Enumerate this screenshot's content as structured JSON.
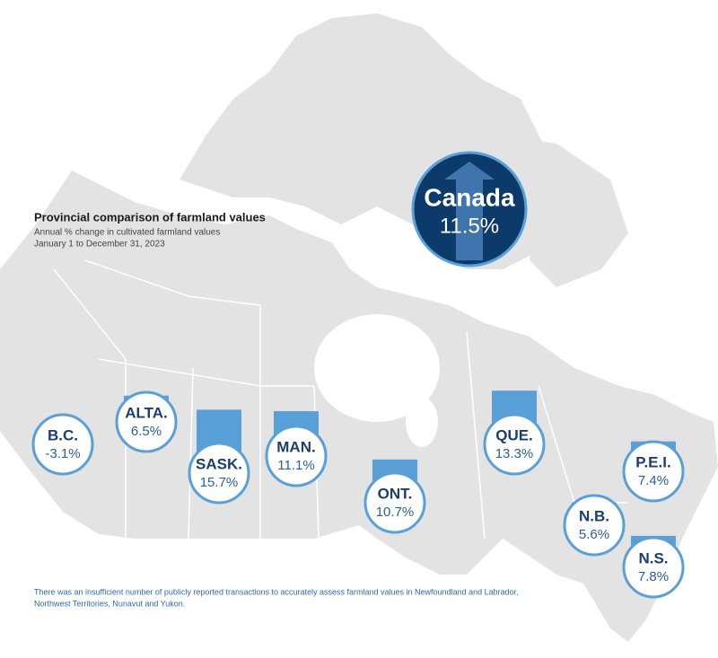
{
  "header": {
    "title": "Provincial comparison of farmland values",
    "subtitle": "Annual % change in cultivated farmland values",
    "period": "January 1 to December 31, 2023"
  },
  "national": {
    "name": "Canada",
    "value": 11.5,
    "value_label": "11.5%"
  },
  "provinces": [
    {
      "name": "B.C.",
      "value": -3.1,
      "value_label": "-3.1%"
    },
    {
      "name": "ALTA.",
      "value": 6.5,
      "value_label": "6.5%"
    },
    {
      "name": "SASK.",
      "value": 15.7,
      "value_label": "15.7%"
    },
    {
      "name": "MAN.",
      "value": 11.1,
      "value_label": "11.1%"
    },
    {
      "name": "ONT.",
      "value": 10.7,
      "value_label": "10.7%"
    },
    {
      "name": "QUE.",
      "value": 13.3,
      "value_label": "13.3%"
    },
    {
      "name": "P.E.I.",
      "value": 7.4,
      "value_label": "7.4%"
    },
    {
      "name": "N.B.",
      "value": 5.6,
      "value_label": "5.6%"
    },
    {
      "name": "N.S.",
      "value": 7.8,
      "value_label": "7.8%"
    }
  ],
  "footnote": [
    "There was an insufficient number of publicly reported transactions to accurately assess farmland values in Newfoundland and Labrador,",
    "Northwest Territories, Nunavut and Yukon."
  ]
}
